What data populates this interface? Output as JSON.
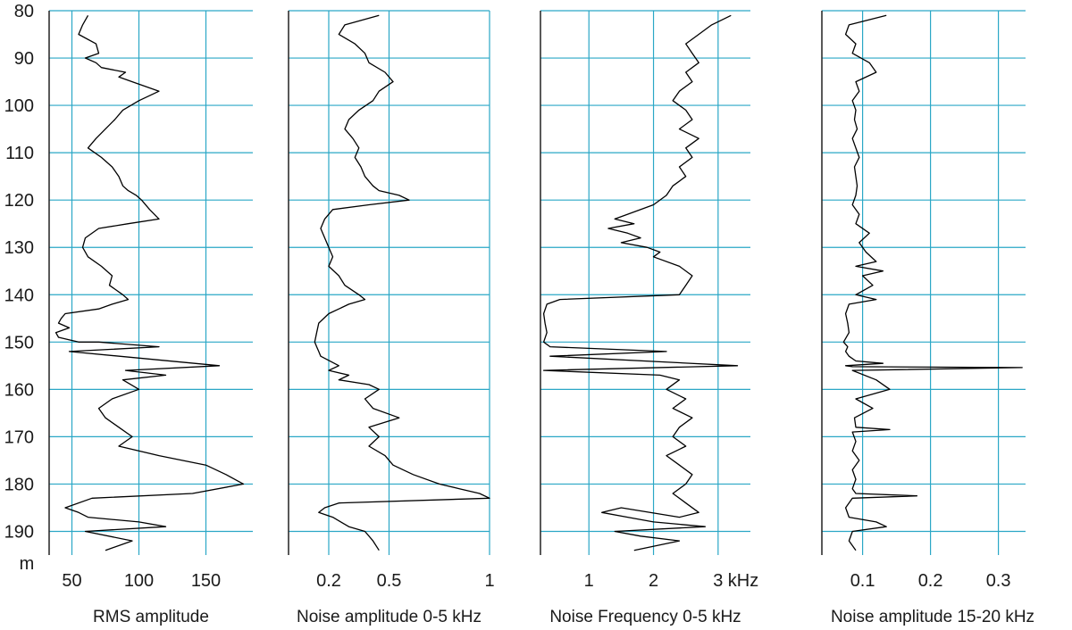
{
  "colors": {
    "grid": "#2aa7c6",
    "trace": "#000000",
    "axis": "#222222",
    "background": "#ffffff"
  },
  "chart_data": [
    {
      "type": "line",
      "title": "",
      "xlabel": "RMS amplitude",
      "ylabel": "m",
      "xlim": [
        33,
        185
      ],
      "ylim": [
        195,
        80
      ],
      "xticks": [
        50,
        100,
        150
      ],
      "yticks": [
        80,
        90,
        100,
        110,
        120,
        130,
        140,
        150,
        160,
        170,
        180,
        190
      ],
      "grid": true,
      "series": [
        {
          "x": [
            62,
            58,
            55,
            68,
            70,
            60,
            68,
            72,
            90,
            85,
            95,
            115,
            100,
            88,
            82,
            75,
            68,
            62,
            72,
            80,
            85,
            88,
            92,
            98,
            102,
            108,
            115,
            92,
            70,
            60,
            58,
            62,
            72,
            80,
            78,
            88,
            92,
            80,
            70,
            45,
            42,
            40,
            48,
            38,
            40,
            55,
            70,
            115,
            48,
            160,
            90,
            120,
            88,
            100,
            80,
            70,
            75,
            85,
            95,
            85,
            115,
            150,
            165,
            178,
            140,
            65,
            45,
            55,
            62,
            100,
            120,
            60,
            95,
            75
          ],
          "y": [
            81,
            83,
            85,
            87,
            89,
            90,
            91,
            92,
            93,
            94,
            95,
            97,
            99,
            101,
            103,
            105,
            107,
            109,
            111,
            113,
            115,
            117,
            118,
            119,
            120,
            122,
            124,
            125,
            126,
            128,
            130,
            132,
            134,
            136,
            138,
            140,
            141,
            142,
            143,
            144,
            145,
            146,
            147,
            148,
            149,
            150,
            150,
            151,
            152,
            155,
            156,
            157,
            158,
            160,
            162,
            164,
            166,
            168,
            170,
            172,
            174,
            176,
            178,
            180,
            182,
            183,
            185,
            186,
            187,
            188,
            189,
            190,
            192,
            194
          ]
        }
      ]
    },
    {
      "type": "line",
      "title": "",
      "xlabel": "Noise amplitude 0-5 kHz",
      "ylabel": "",
      "xlim": [
        0.0,
        1.0
      ],
      "ylim": [
        195,
        80
      ],
      "xticks": [
        0.2,
        0.5,
        1
      ],
      "xticklabels": [
        "0.2",
        "0.5",
        "1"
      ],
      "grid": true,
      "series": [
        {
          "x": [
            0.45,
            0.28,
            0.25,
            0.33,
            0.38,
            0.4,
            0.48,
            0.52,
            0.45,
            0.42,
            0.35,
            0.3,
            0.28,
            0.32,
            0.35,
            0.33,
            0.36,
            0.38,
            0.42,
            0.45,
            0.55,
            0.6,
            0.4,
            0.22,
            0.18,
            0.16,
            0.18,
            0.2,
            0.22,
            0.2,
            0.25,
            0.28,
            0.35,
            0.38,
            0.3,
            0.25,
            0.2,
            0.15,
            0.14,
            0.13,
            0.14,
            0.15,
            0.16,
            0.25,
            0.2,
            0.3,
            0.25,
            0.4,
            0.45,
            0.38,
            0.42,
            0.55,
            0.4,
            0.45,
            0.4,
            0.48,
            0.52,
            0.62,
            0.75,
            0.85,
            0.95,
            1.0,
            0.25,
            0.18,
            0.15,
            0.22,
            0.26,
            0.3,
            0.38,
            0.42,
            0.45
          ],
          "y": [
            81,
            83,
            85,
            87,
            89,
            91,
            93,
            95,
            97,
            99,
            101,
            103,
            105,
            107,
            109,
            111,
            113,
            115,
            117,
            118,
            119,
            120,
            121,
            122,
            124,
            126,
            128,
            130,
            132,
            134,
            136,
            138,
            140,
            141,
            142,
            143,
            144,
            146,
            148,
            150,
            151,
            152,
            153,
            155,
            156,
            157,
            158,
            159,
            160,
            162,
            164,
            166,
            168,
            170,
            172,
            174,
            176,
            178,
            180,
            181,
            182,
            183,
            184,
            185,
            186,
            187,
            188,
            189,
            190,
            192,
            194
          ]
        }
      ]
    },
    {
      "type": "line",
      "title": "",
      "xlabel": "Noise Frequency 0-5 kHz",
      "ylabel": "",
      "xlim": [
        0.25,
        3.5
      ],
      "ylim": [
        195,
        80
      ],
      "xticks": [
        1,
        2,
        3
      ],
      "xticklabels": [
        "1",
        "2",
        "3"
      ],
      "extra_label": "kHz",
      "grid": true,
      "series": [
        {
          "x": [
            3.2,
            2.9,
            2.7,
            2.5,
            2.6,
            2.7,
            2.5,
            2.6,
            2.4,
            2.3,
            2.5,
            2.6,
            2.4,
            2.7,
            2.5,
            2.6,
            2.4,
            2.5,
            2.3,
            2.2,
            2.0,
            1.6,
            1.4,
            1.7,
            1.3,
            1.6,
            1.8,
            1.5,
            1.9,
            2.1,
            2.0,
            2.4,
            2.6,
            2.5,
            2.4,
            0.55,
            0.35,
            0.3,
            0.32,
            0.35,
            0.3,
            0.4,
            2.2,
            0.4,
            3.3,
            0.3,
            2.1,
            2.4,
            2.2,
            2.5,
            2.3,
            2.6,
            2.4,
            2.3,
            2.5,
            2.2,
            2.4,
            2.6,
            2.5,
            2.3,
            2.5,
            2.7,
            2.4,
            1.5,
            1.2,
            1.6,
            2.0,
            2.8,
            1.4,
            1.8,
            2.4,
            1.7
          ],
          "y": [
            81,
            83,
            85,
            87,
            89,
            91,
            93,
            95,
            97,
            99,
            101,
            103,
            105,
            107,
            109,
            111,
            113,
            115,
            117,
            119,
            121,
            123,
            124,
            125,
            126,
            127,
            128,
            129,
            130,
            131,
            132,
            134,
            136,
            138,
            140,
            141,
            142,
            144,
            146,
            148,
            150,
            151,
            152,
            153,
            155,
            156,
            157,
            158,
            160,
            162,
            164,
            166,
            168,
            170,
            172,
            174,
            176,
            178,
            180,
            182,
            184,
            186,
            187,
            185,
            186,
            187,
            188,
            189,
            190,
            191,
            192,
            194
          ]
        }
      ]
    },
    {
      "type": "line",
      "title": "",
      "xlabel": "Noise amplitude 15-20 kHz",
      "ylabel": "",
      "xlim": [
        0.04,
        0.34
      ],
      "ylim": [
        195,
        80
      ],
      "xticks": [
        0.1,
        0.2,
        0.3
      ],
      "xticklabels": [
        "0.1",
        "0.2",
        "0.3"
      ],
      "grid": true,
      "series": [
        {
          "x": [
            0.135,
            0.08,
            0.075,
            0.09,
            0.085,
            0.11,
            0.12,
            0.09,
            0.095,
            0.085,
            0.09,
            0.088,
            0.092,
            0.085,
            0.09,
            0.095,
            0.088,
            0.09,
            0.092,
            0.09,
            0.085,
            0.095,
            0.09,
            0.11,
            0.095,
            0.105,
            0.12,
            0.09,
            0.13,
            0.1,
            0.115,
            0.09,
            0.12,
            0.08,
            0.075,
            0.078,
            0.08,
            0.072,
            0.078,
            0.075,
            0.08,
            0.09,
            0.13,
            0.075,
            0.085,
            0.335,
            0.085,
            0.12,
            0.14,
            0.09,
            0.115,
            0.088,
            0.09,
            0.14,
            0.085,
            0.09,
            0.085,
            0.095,
            0.085,
            0.09,
            0.085,
            0.09,
            0.18,
            0.085,
            0.075,
            0.08,
            0.12,
            0.135,
            0.085,
            0.08,
            0.09
          ],
          "y": [
            81,
            83,
            85,
            87,
            89,
            91,
            93,
            95,
            97,
            99,
            101,
            103,
            105,
            107,
            109,
            111,
            113,
            115,
            117,
            119,
            121,
            123,
            125,
            127,
            129,
            131,
            133,
            134,
            135,
            136,
            138,
            140,
            141,
            142,
            144,
            146,
            148,
            150,
            151,
            152,
            153,
            154,
            154.5,
            155,
            155.2,
            155.4,
            156,
            158,
            160,
            162,
            164,
            166,
            168,
            168.5,
            169,
            171,
            173,
            175,
            177,
            179,
            181,
            182,
            182.5,
            183,
            185,
            187,
            188,
            189,
            190,
            192,
            194
          ]
        }
      ]
    }
  ]
}
